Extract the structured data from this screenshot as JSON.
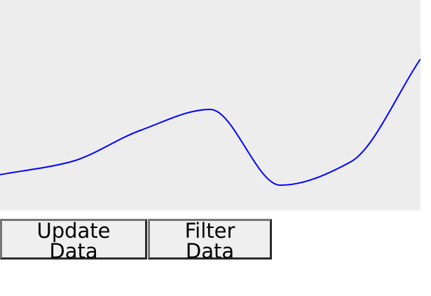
{
  "chart_data": {
    "type": "line",
    "background": "#ededed",
    "line_color": "#0000ff",
    "grid": false,
    "x": [
      0,
      1,
      2,
      3,
      4,
      5,
      6
    ],
    "y": [
      0.17,
      0.23,
      0.38,
      0.48,
      0.12,
      0.23,
      0.72
    ],
    "xlim": [
      0,
      6
    ],
    "ylim": [
      0,
      1
    ],
    "title": "",
    "xlabel": "",
    "ylabel": ""
  },
  "controls": {
    "update_label": "Update Data",
    "filter_label": "Filter Data"
  }
}
